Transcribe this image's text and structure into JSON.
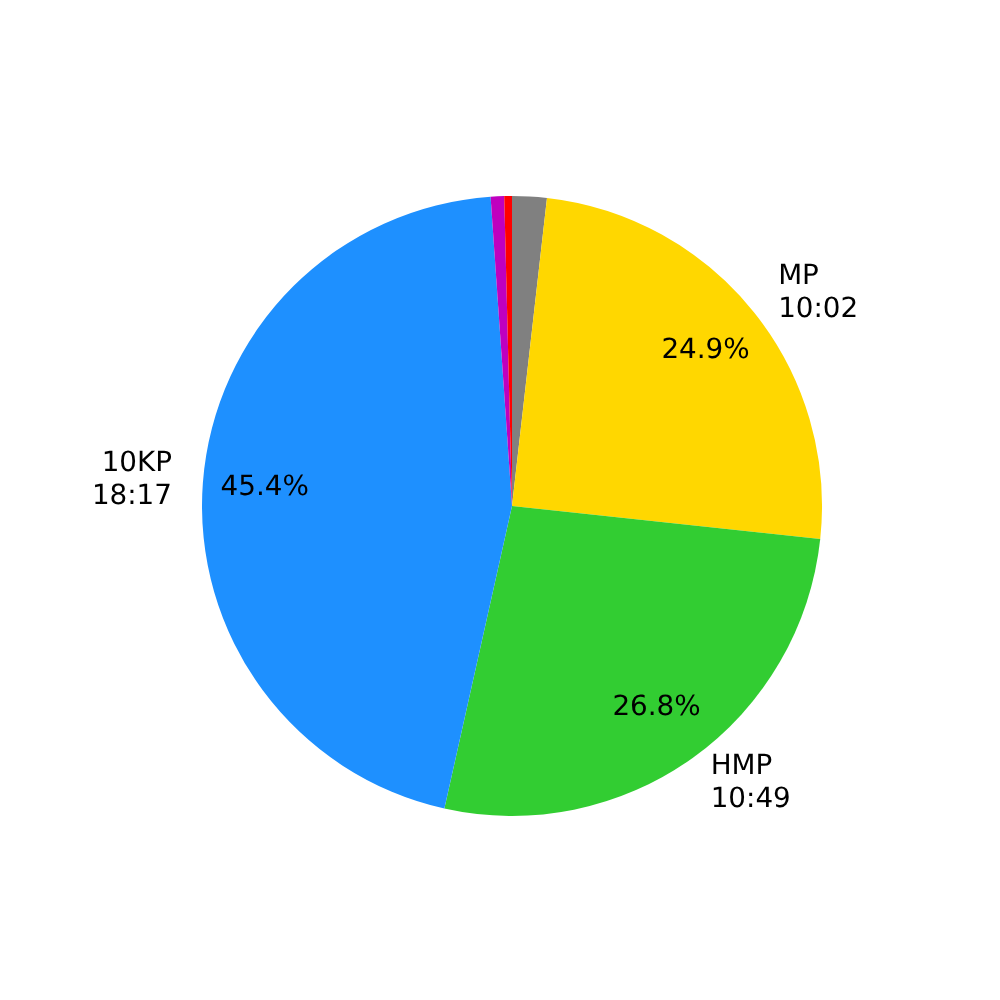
{
  "chart_data": {
    "type": "pie",
    "categories": [
      null,
      "MP\n10:02",
      "HMP\n10:49",
      "10KP\n18:17",
      null,
      null
    ],
    "values": [
      1.8,
      24.9,
      26.8,
      45.4,
      0.7,
      0.4
    ],
    "colors": [
      "#808080",
      "#ffd700",
      "#32cd32",
      "#1e90ff",
      "#bf00bf",
      "#ff0000"
    ],
    "value_labels": [
      null,
      "24.9%",
      "26.8%",
      "45.4%",
      null,
      null
    ]
  }
}
